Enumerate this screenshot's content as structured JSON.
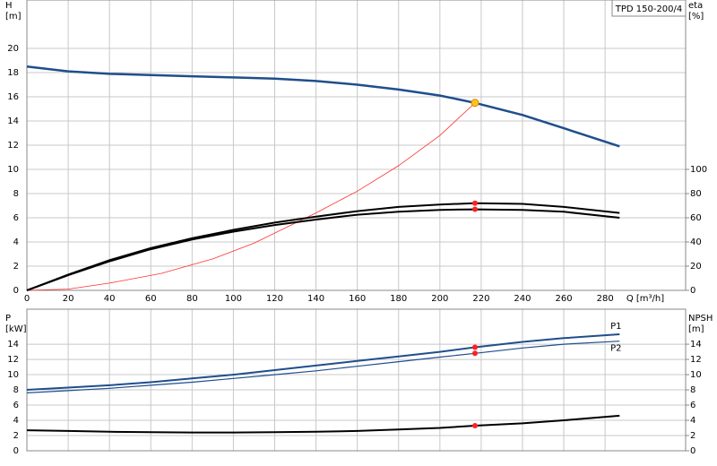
{
  "chart_data": [
    {
      "type": "line",
      "title": "TPD 150-200/4",
      "xlabel": "Q [m³/h]",
      "ylabel": "H",
      "yunit": "[m]",
      "y2label": "eta",
      "y2unit": "[%]",
      "xlim": [
        0,
        319
      ],
      "xticks": [
        0,
        20,
        40,
        60,
        80,
        100,
        120,
        140,
        160,
        180,
        200,
        220,
        240,
        260,
        280
      ],
      "ylim": [
        0,
        24
      ],
      "yticks": [
        0,
        2,
        4,
        6,
        8,
        10,
        12,
        14,
        16,
        18,
        20
      ],
      "y2lim": [
        0,
        240
      ],
      "y2ticks": [
        0,
        20,
        40,
        60,
        80,
        100
      ],
      "grid": true,
      "series": [
        {
          "color": "#1f4e8c",
          "x": [
            0,
            20,
            40,
            60,
            80,
            100,
            120,
            140,
            160,
            180,
            200,
            217,
            240,
            260,
            287
          ],
          "values": [
            18.5,
            18.1,
            17.9,
            17.8,
            17.7,
            17.6,
            17.5,
            17.3,
            17.0,
            16.6,
            16.1,
            15.5,
            14.5,
            13.4,
            11.9
          ]
        },
        {
          "color": "#ff3030",
          "x": [
            0,
            20,
            40,
            65,
            90,
            110,
            140,
            160,
            180,
            200,
            217
          ],
          "values": [
            0,
            0.1,
            0.6,
            1.4,
            2.6,
            3.9,
            6.4,
            8.2,
            10.3,
            12.8,
            15.5
          ]
        },
        {
          "color": "#000000",
          "axis": "y2",
          "x": [
            0,
            20,
            40,
            60,
            80,
            100,
            120,
            140,
            160,
            180,
            200,
            217,
            240,
            260,
            287
          ],
          "values": [
            0,
            13,
            25,
            35,
            43,
            50,
            56,
            61,
            65.5,
            69,
            71,
            72,
            71.5,
            69,
            64
          ]
        },
        {
          "color": "#000000",
          "axis": "y2",
          "x": [
            0,
            20,
            40,
            60,
            80,
            100,
            120,
            140,
            160,
            180,
            200,
            217,
            240,
            260,
            287
          ],
          "values": [
            0,
            12.5,
            24,
            34,
            42,
            48.5,
            54,
            58.5,
            62.5,
            65,
            66.5,
            67,
            66.5,
            65,
            60
          ]
        }
      ],
      "markers": [
        {
          "x": 217,
          "y": 15.5,
          "color": "#ffc61a"
        },
        {
          "x": 217,
          "y": 72,
          "axis": "y2",
          "color": "#ff2020"
        },
        {
          "x": 217,
          "y": 67,
          "axis": "y2",
          "color": "#ff2020"
        }
      ]
    },
    {
      "type": "line",
      "ylabel": "P",
      "yunit": "[kW]",
      "y2label": "NPSH",
      "y2unit": "[m]",
      "xlim": [
        0,
        319
      ],
      "xticks": [
        0,
        20,
        40,
        60,
        80,
        100,
        120,
        140,
        160,
        180,
        200,
        220,
        240,
        260,
        280
      ],
      "ylim": [
        0,
        18.6
      ],
      "yticks": [
        0,
        2,
        4,
        6,
        8,
        10,
        12,
        14
      ],
      "y2lim": [
        0,
        18.6
      ],
      "y2ticks": [
        0,
        2,
        4,
        6,
        8,
        10,
        12,
        14
      ],
      "grid": true,
      "series": [
        {
          "name": "P1",
          "color": "#1f4e8c",
          "x": [
            0,
            20,
            40,
            60,
            80,
            100,
            120,
            140,
            160,
            180,
            200,
            217,
            240,
            260,
            287
          ],
          "values": [
            8.0,
            8.3,
            8.6,
            9.0,
            9.5,
            10.0,
            10.6,
            11.2,
            11.8,
            12.4,
            13.0,
            13.6,
            14.3,
            14.8,
            15.3
          ]
        },
        {
          "name": "P2",
          "color": "#1f4e8c",
          "x": [
            0,
            20,
            40,
            60,
            80,
            100,
            120,
            140,
            160,
            180,
            200,
            217,
            240,
            260,
            287
          ],
          "values": [
            7.6,
            7.9,
            8.2,
            8.6,
            9.0,
            9.5,
            10.0,
            10.5,
            11.1,
            11.7,
            12.3,
            12.8,
            13.5,
            14.0,
            14.4
          ]
        },
        {
          "color": "#000000",
          "axis": "y2",
          "x": [
            0,
            20,
            40,
            60,
            80,
            100,
            120,
            140,
            160,
            180,
            200,
            217,
            240,
            260,
            287
          ],
          "values": [
            2.7,
            2.6,
            2.5,
            2.45,
            2.4,
            2.4,
            2.45,
            2.5,
            2.6,
            2.8,
            3.0,
            3.3,
            3.6,
            4.0,
            4.6
          ]
        }
      ],
      "markers": [
        {
          "x": 217,
          "y": 13.6,
          "color": "#ff2020"
        },
        {
          "x": 217,
          "y": 12.8,
          "color": "#ff2020"
        },
        {
          "x": 217,
          "y": 3.3,
          "axis": "y2",
          "color": "#ff2020"
        }
      ]
    }
  ]
}
